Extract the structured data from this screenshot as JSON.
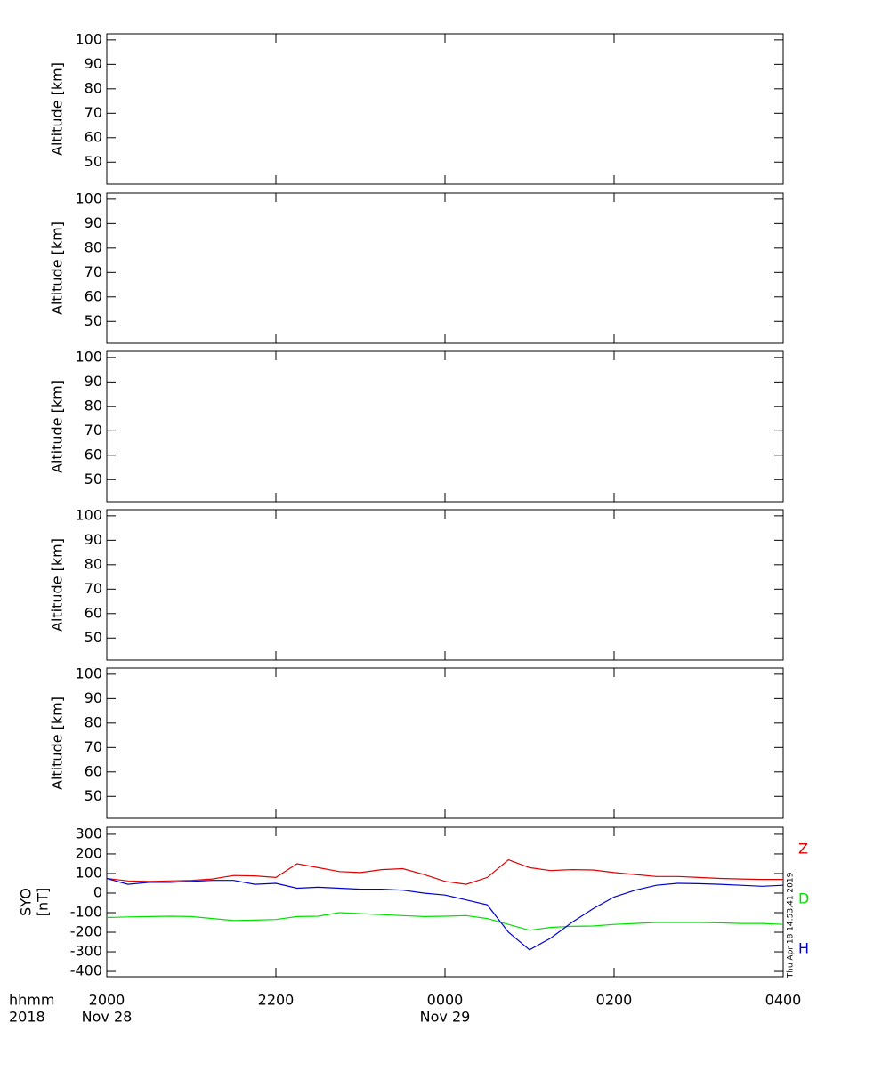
{
  "chart_data": [
    {
      "type": "line",
      "ylabel": "Altitude  [km]",
      "ylim": [
        41,
        102.5
      ],
      "yticks": [
        50,
        60,
        70,
        80,
        90,
        100
      ],
      "xlim": [
        20,
        28
      ],
      "xticks": [
        20,
        22,
        24,
        26,
        28
      ],
      "series": []
    },
    {
      "type": "line",
      "ylabel": "Altitude  [km]",
      "ylim": [
        41,
        102.5
      ],
      "yticks": [
        50,
        60,
        70,
        80,
        90,
        100
      ],
      "xlim": [
        20,
        28
      ],
      "xticks": [
        20,
        22,
        24,
        26,
        28
      ],
      "series": []
    },
    {
      "type": "line",
      "ylabel": "Altitude  [km]",
      "ylim": [
        41,
        102.5
      ],
      "yticks": [
        50,
        60,
        70,
        80,
        90,
        100
      ],
      "xlim": [
        20,
        28
      ],
      "xticks": [
        20,
        22,
        24,
        26,
        28
      ],
      "series": []
    },
    {
      "type": "line",
      "ylabel": "Altitude  [km]",
      "ylim": [
        41,
        102.5
      ],
      "yticks": [
        50,
        60,
        70,
        80,
        90,
        100
      ],
      "xlim": [
        20,
        28
      ],
      "xticks": [
        20,
        22,
        24,
        26,
        28
      ],
      "series": []
    },
    {
      "type": "line",
      "ylabel": "Altitude  [km]",
      "ylim": [
        41,
        102.5
      ],
      "yticks": [
        50,
        60,
        70,
        80,
        90,
        100
      ],
      "xlim": [
        20,
        28
      ],
      "xticks": [
        20,
        22,
        24,
        26,
        28
      ],
      "series": []
    },
    {
      "type": "line",
      "ylabel": [
        "SYO",
        "[nT]"
      ],
      "ylim": [
        -427,
        336
      ],
      "yticks": [
        -400,
        -300,
        -200,
        -100,
        0,
        100,
        200,
        300
      ],
      "xlim": [
        20,
        28
      ],
      "xticks": [
        {
          "value": 20,
          "label": "2000"
        },
        {
          "value": 22,
          "label": "2200"
        },
        {
          "value": 24,
          "label": "0000"
        },
        {
          "value": 26,
          "label": "0200"
        },
        {
          "value": 28,
          "label": "0400"
        }
      ],
      "xsublabels": [
        {
          "value": 20,
          "label": "Nov 28"
        },
        {
          "value": 24,
          "label": "Nov 29"
        }
      ],
      "xlabel": [
        "hhmm",
        "2018"
      ],
      "annotation": "Thu Apr 18 14:53:41 2019",
      "x": [
        20,
        20.25,
        20.5,
        20.75,
        21,
        21.25,
        21.5,
        21.75,
        22,
        22.25,
        22.5,
        22.75,
        23,
        23.25,
        23.5,
        23.75,
        24,
        24.25,
        24.5,
        24.75,
        25,
        25.25,
        25.5,
        25.75,
        26,
        26.25,
        26.5,
        26.75,
        27,
        27.25,
        27.5,
        27.75,
        28
      ],
      "series": [
        {
          "name": "Z",
          "color": "#e00000",
          "values": [
            75,
            62,
            60,
            62,
            65,
            72,
            90,
            88,
            80,
            150,
            130,
            110,
            105,
            120,
            125,
            95,
            60,
            45,
            80,
            170,
            130,
            115,
            120,
            118,
            105,
            95,
            85,
            85,
            80,
            75,
            72,
            70,
            70
          ]
        },
        {
          "name": "D",
          "color": "#00e000",
          "values": [
            -125,
            -122,
            -120,
            -118,
            -120,
            -130,
            -140,
            -138,
            -135,
            -120,
            -118,
            -100,
            -105,
            -110,
            -115,
            -120,
            -118,
            -115,
            -130,
            -160,
            -190,
            -175,
            -170,
            -168,
            -160,
            -155,
            -150,
            -150,
            -150,
            -152,
            -155,
            -155,
            -160
          ]
        },
        {
          "name": "H",
          "color": "#0000d0",
          "values": [
            75,
            45,
            55,
            55,
            60,
            65,
            65,
            45,
            50,
            25,
            30,
            25,
            20,
            20,
            15,
            0,
            -10,
            -35,
            -60,
            -200,
            -290,
            -230,
            -150,
            -80,
            -20,
            15,
            40,
            50,
            48,
            45,
            40,
            35,
            40
          ]
        }
      ]
    }
  ]
}
